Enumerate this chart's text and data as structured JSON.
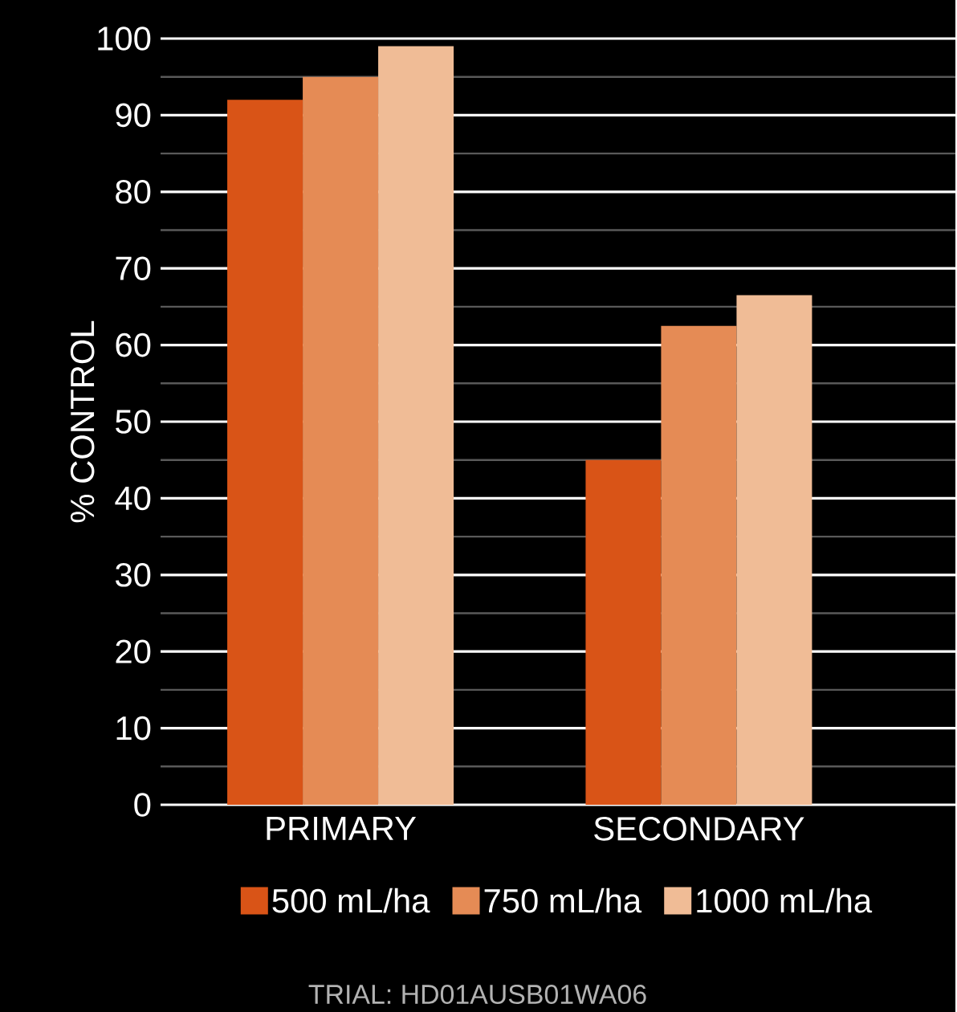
{
  "chart_data": {
    "type": "bar",
    "ylabel": "% CONTROL",
    "categories": [
      "PRIMARY",
      "SECONDARY"
    ],
    "series": [
      {
        "name": "500 mL/ha",
        "color": "#d95417",
        "values": [
          92,
          45
        ]
      },
      {
        "name": "750 mL/ha",
        "color": "#e58b55",
        "values": [
          95,
          62.5
        ]
      },
      {
        "name": "1000 mL/ha",
        "color": "#f0bc96",
        "values": [
          99,
          66.5
        ]
      }
    ],
    "ylim": [
      0,
      100
    ],
    "yticks": [
      0,
      10,
      20,
      30,
      40,
      50,
      60,
      70,
      80,
      90,
      100
    ],
    "grid": "y",
    "legend": "bottom",
    "annotations": [
      "TRIAL: HD01AUSB01WA06"
    ]
  }
}
